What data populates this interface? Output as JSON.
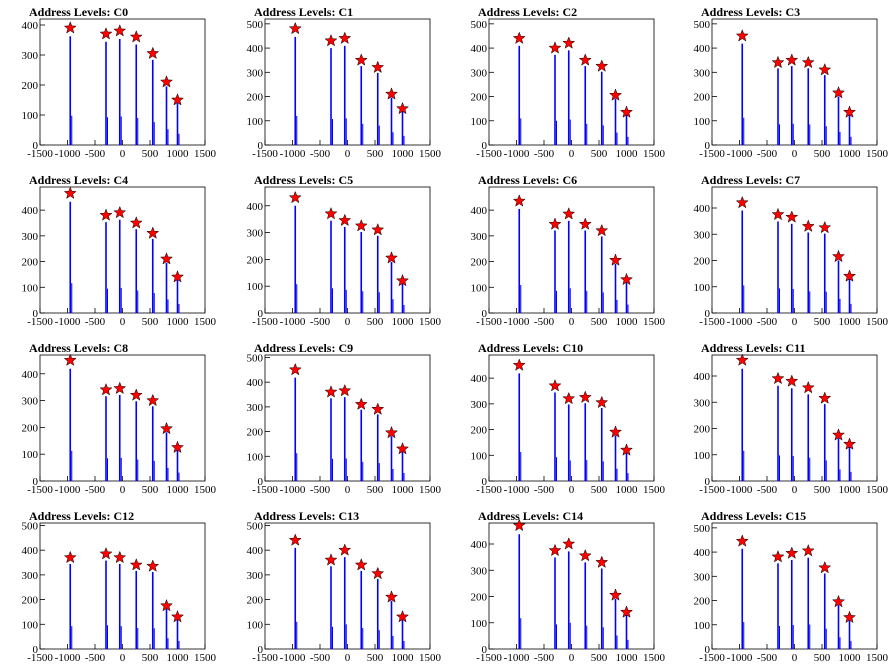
{
  "chart_data": [
    {
      "type": "bar",
      "title": "Address Levels: C0",
      "xlim": [
        -1500,
        1500
      ],
      "ylim": [
        0,
        420
      ],
      "yticks": [
        0,
        100,
        200,
        300,
        400
      ],
      "xticks": [
        "-1500",
        "-1000",
        "-500",
        "0",
        "500",
        "1000",
        "1500"
      ],
      "markers": {
        "x": [
          -950,
          -300,
          -50,
          250,
          550,
          800,
          1000
        ],
        "y": [
          390,
          370,
          380,
          360,
          305,
          210,
          150
        ]
      }
    },
    {
      "type": "bar",
      "title": "Address Levels: C1",
      "xlim": [
        -1500,
        1500
      ],
      "ylim": [
        0,
        520
      ],
      "yticks": [
        0,
        100,
        200,
        300,
        400,
        500
      ],
      "xticks": [
        "-1500",
        "-1000",
        "-500",
        "0",
        "500",
        "1000",
        "1500"
      ],
      "markers": {
        "x": [
          -950,
          -300,
          -50,
          250,
          550,
          800,
          1000
        ],
        "y": [
          480,
          430,
          440,
          350,
          320,
          210,
          150
        ]
      }
    },
    {
      "type": "bar",
      "title": "Address Levels: C2",
      "xlim": [
        -1500,
        1500
      ],
      "ylim": [
        0,
        520
      ],
      "yticks": [
        0,
        100,
        200,
        300,
        400,
        500
      ],
      "xticks": [
        "-1500",
        "-1000",
        "-500",
        "0",
        "500",
        "1000",
        "1500"
      ],
      "markers": {
        "x": [
          -950,
          -300,
          -50,
          250,
          550,
          800,
          1000
        ],
        "y": [
          440,
          400,
          420,
          350,
          325,
          205,
          135
        ]
      }
    },
    {
      "type": "bar",
      "title": "Address Levels: C3",
      "xlim": [
        -1500,
        1500
      ],
      "ylim": [
        0,
        520
      ],
      "yticks": [
        0,
        100,
        200,
        300,
        400,
        500
      ],
      "xticks": [
        "-1500",
        "-1000",
        "-500",
        "0",
        "500",
        "1000",
        "1500"
      ],
      "markers": {
        "x": [
          -950,
          -300,
          -50,
          250,
          550,
          800,
          1000
        ],
        "y": [
          450,
          340,
          350,
          340,
          310,
          215,
          135
        ]
      }
    },
    {
      "type": "bar",
      "title": "Address Levels: C4",
      "xlim": [
        -1500,
        1500
      ],
      "ylim": [
        0,
        490
      ],
      "yticks": [
        0,
        100,
        200,
        300,
        400
      ],
      "xticks": [
        "-1500",
        "-1000",
        "-500",
        "0",
        "500",
        "1000",
        "1500"
      ],
      "markers": {
        "x": [
          -950,
          -300,
          -50,
          250,
          550,
          800,
          1000
        ],
        "y": [
          465,
          380,
          390,
          350,
          310,
          210,
          140
        ]
      }
    },
    {
      "type": "bar",
      "title": "Address Levels: C5",
      "xlim": [
        -1500,
        1500
      ],
      "ylim": [
        0,
        470
      ],
      "yticks": [
        0,
        100,
        200,
        300,
        400
      ],
      "xticks": [
        "-1500",
        "-1000",
        "-500",
        "0",
        "500",
        "1000",
        "1500"
      ],
      "markers": {
        "x": [
          -950,
          -300,
          -50,
          250,
          550,
          800,
          1000
        ],
        "y": [
          430,
          370,
          345,
          325,
          310,
          205,
          120
        ]
      }
    },
    {
      "type": "bar",
      "title": "Address Levels: C6",
      "xlim": [
        -1500,
        1500
      ],
      "ylim": [
        0,
        490
      ],
      "yticks": [
        0,
        100,
        200,
        300,
        400
      ],
      "xticks": [
        "-1500",
        "-1000",
        "-500",
        "0",
        "500",
        "1000",
        "1500"
      ],
      "markers": {
        "x": [
          -950,
          -300,
          -50,
          250,
          550,
          800,
          1000
        ],
        "y": [
          435,
          345,
          385,
          345,
          320,
          205,
          130
        ]
      }
    },
    {
      "type": "bar",
      "title": "Address Levels: C7",
      "xlim": [
        -1500,
        1500
      ],
      "ylim": [
        0,
        480
      ],
      "yticks": [
        0,
        100,
        200,
        300,
        400
      ],
      "xticks": [
        "-1500",
        "-1000",
        "-500",
        "0",
        "500",
        "1000",
        "1500"
      ],
      "markers": {
        "x": [
          -950,
          -300,
          -50,
          250,
          550,
          800,
          1000
        ],
        "y": [
          420,
          375,
          365,
          330,
          325,
          215,
          140
        ]
      }
    },
    {
      "type": "bar",
      "title": "Address Levels: C8",
      "xlim": [
        -1500,
        1500
      ],
      "ylim": [
        0,
        470
      ],
      "yticks": [
        0,
        100,
        200,
        300,
        400
      ],
      "xticks": [
        "-1500",
        "-1000",
        "-500",
        "0",
        "500",
        "1000",
        "1500"
      ],
      "markers": {
        "x": [
          -950,
          -300,
          -50,
          250,
          550,
          800,
          1000
        ],
        "y": [
          450,
          340,
          345,
          320,
          300,
          195,
          125
        ]
      }
    },
    {
      "type": "bar",
      "title": "Address Levels: C9",
      "xlim": [
        -1500,
        1500
      ],
      "ylim": [
        0,
        510
      ],
      "yticks": [
        0,
        100,
        200,
        300,
        400,
        500
      ],
      "xticks": [
        "-1500",
        "-1000",
        "-500",
        "0",
        "500",
        "1000",
        "1500"
      ],
      "markers": {
        "x": [
          -950,
          -300,
          -50,
          250,
          550,
          800,
          1000
        ],
        "y": [
          450,
          360,
          365,
          310,
          290,
          195,
          130
        ]
      }
    },
    {
      "type": "bar",
      "title": "Address Levels: C10",
      "xlim": [
        -1500,
        1500
      ],
      "ylim": [
        0,
        490
      ],
      "yticks": [
        0,
        100,
        200,
        300,
        400
      ],
      "xticks": [
        "-1500",
        "-1000",
        "-500",
        "0",
        "500",
        "1000",
        "1500"
      ],
      "markers": {
        "x": [
          -950,
          -300,
          -50,
          250,
          550,
          800,
          1000
        ],
        "y": [
          450,
          370,
          320,
          325,
          305,
          190,
          120
        ]
      }
    },
    {
      "type": "bar",
      "title": "Address Levels: C11",
      "xlim": [
        -1500,
        1500
      ],
      "ylim": [
        0,
        480
      ],
      "yticks": [
        0,
        100,
        200,
        300,
        400
      ],
      "xticks": [
        "-1500",
        "-1000",
        "-500",
        "0",
        "500",
        "1000",
        "1500"
      ],
      "markers": {
        "x": [
          -950,
          -300,
          -50,
          250,
          550,
          800,
          1000
        ],
        "y": [
          460,
          390,
          380,
          355,
          315,
          175,
          140
        ]
      }
    },
    {
      "type": "bar",
      "title": "Address Levels: C12",
      "xlim": [
        -1500,
        1500
      ],
      "ylim": [
        0,
        510
      ],
      "yticks": [
        0,
        100,
        200,
        300,
        400,
        500
      ],
      "xticks": [
        "-1500",
        "-1000",
        "-500",
        "0",
        "500",
        "1000",
        "1500"
      ],
      "markers": {
        "x": [
          -950,
          -300,
          -50,
          250,
          550,
          800,
          1000
        ],
        "y": [
          370,
          385,
          370,
          340,
          335,
          175,
          130
        ]
      }
    },
    {
      "type": "bar",
      "title": "Address Levels: C13",
      "xlim": [
        -1500,
        1500
      ],
      "ylim": [
        0,
        510
      ],
      "yticks": [
        0,
        100,
        200,
        300,
        400,
        500
      ],
      "xticks": [
        "-1500",
        "-1000",
        "-500",
        "0",
        "500",
        "1000",
        "1500"
      ],
      "markers": {
        "x": [
          -950,
          -300,
          -50,
          250,
          550,
          800,
          1000
        ],
        "y": [
          440,
          360,
          400,
          340,
          305,
          210,
          130
        ]
      }
    },
    {
      "type": "bar",
      "title": "Address Levels: C14",
      "xlim": [
        -1500,
        1500
      ],
      "ylim": [
        0,
        480
      ],
      "yticks": [
        0,
        100,
        200,
        300,
        400
      ],
      "xticks": [
        "-1500",
        "-1000",
        "-500",
        "0",
        "500",
        "1000",
        "1500"
      ],
      "markers": {
        "x": [
          -950,
          -300,
          -50,
          250,
          550,
          800,
          1000
        ],
        "y": [
          470,
          375,
          400,
          355,
          330,
          205,
          140
        ]
      }
    },
    {
      "type": "bar",
      "title": "Address Levels: C15",
      "xlim": [
        -1500,
        1500
      ],
      "ylim": [
        0,
        520
      ],
      "yticks": [
        0,
        100,
        200,
        300,
        400,
        500
      ],
      "xticks": [
        "-1500",
        "-1000",
        "-500",
        "0",
        "500",
        "1000",
        "1500"
      ],
      "markers": {
        "x": [
          -950,
          -300,
          -50,
          250,
          550,
          800,
          1000
        ],
        "y": [
          445,
          380,
          395,
          405,
          335,
          195,
          130
        ]
      }
    }
  ],
  "colors": {
    "bar": "#0000ff",
    "marker": "#ff0000",
    "axis": "#000000"
  },
  "marker_shape": "star"
}
